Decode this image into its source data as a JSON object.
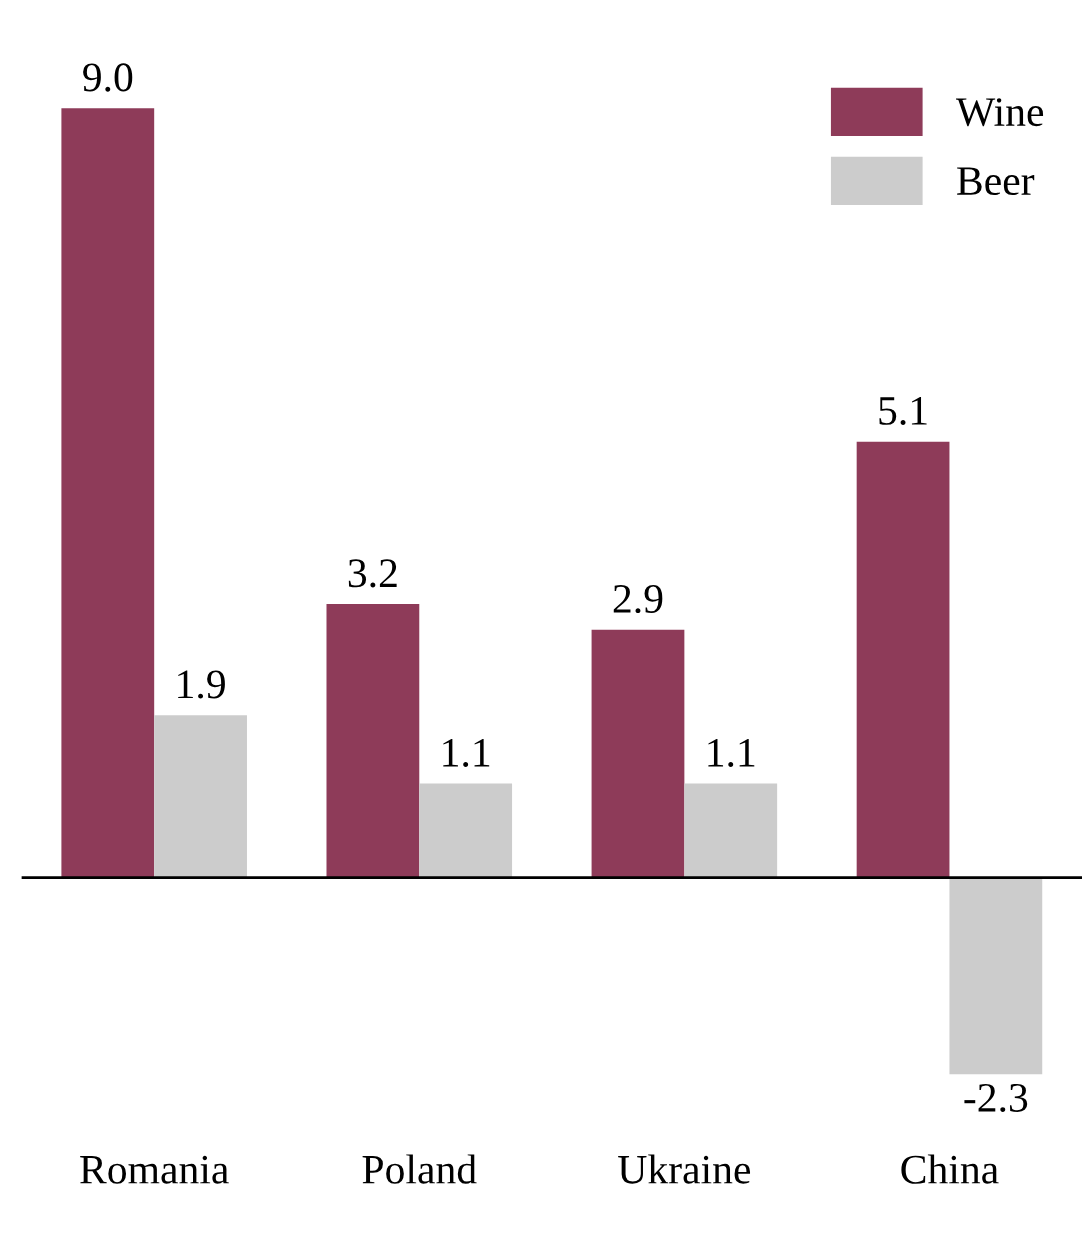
{
  "chart_data": {
    "type": "bar",
    "categories": [
      "Romania",
      "Poland",
      "Ukraine",
      "China"
    ],
    "series": [
      {
        "name": "Wine",
        "color": "#8e3b59",
        "values": [
          9.0,
          3.2,
          2.9,
          5.1
        ],
        "value_labels": [
          "9.0",
          "3.2",
          "2.9",
          "5.1"
        ]
      },
      {
        "name": "Beer",
        "color": "#cccccc",
        "values": [
          1.9,
          1.1,
          1.1,
          -2.3
        ],
        "value_labels": [
          "1.9",
          "1.1",
          "1.1",
          "-2.3"
        ]
      }
    ],
    "legend": "top right",
    "grid": false
  }
}
